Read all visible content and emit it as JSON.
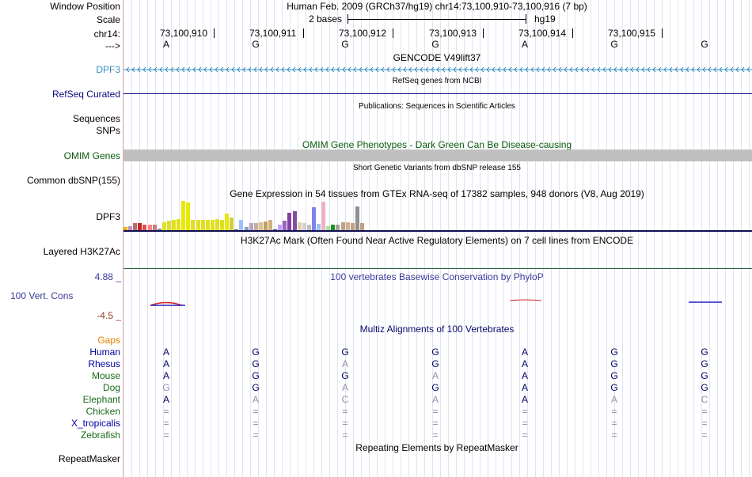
{
  "header": {
    "window_position_label": "Window Position",
    "scale_label": "Scale",
    "chrom_label": "chr14:",
    "strand_label": "--->",
    "assembly_text": "Human Feb. 2009 (GRCh37/hg19)   chr14:73,100,910-73,100,916 (7 bp)",
    "scale_text": "2 bases",
    "scale_db": "hg19",
    "positions": [
      "73,100,910",
      "73,100,911",
      "73,100,912",
      "73,100,913",
      "73,100,914",
      "73,100,915"
    ],
    "bases": [
      "A",
      "G",
      "G",
      "G",
      "A",
      "G",
      "G"
    ]
  },
  "tracks": {
    "gencode": {
      "title": "GENCODE V49lift37",
      "label": "DPF3",
      "color": "#3a8fc0"
    },
    "refseq": {
      "title": "RefSeq genes from NCBI",
      "label": "RefSeq Curated"
    },
    "publications": {
      "title": "Publications: Sequences in Scientific Articles",
      "label1": "Sequences",
      "label2": "SNPs"
    },
    "omim": {
      "title": "OMIM Gene Phenotypes - Dark Green Can Be Disease-causing",
      "label": "OMIM Genes"
    },
    "dbsnp": {
      "title": "Short Genetic Variants from dbSNP release 155",
      "label": "Common dbSNP(155)"
    },
    "gtex": {
      "title": "Gene Expression in 54 tissues from GTEx RNA-seq of 17382 samples, 948 donors (V8, Aug 2019)",
      "label": "DPF3",
      "bars": [
        0.12,
        0.16,
        0.26,
        0.26,
        0.22,
        0.2,
        0.2,
        0.08,
        0.3,
        0.34,
        0.36,
        0.4,
        1.0,
        0.94,
        0.38,
        0.36,
        0.38,
        0.38,
        0.38,
        0.4,
        0.36,
        0.58,
        0.44,
        0.06,
        0.36,
        0.14,
        0.26,
        0.26,
        0.3,
        0.32,
        0.38,
        0.06,
        0.2,
        0.34,
        0.6,
        0.66,
        0.3,
        0.26,
        0.2,
        0.8,
        0.24,
        0.98,
        0.16,
        0.2,
        0.22,
        0.28,
        0.28,
        0.26,
        0.82,
        0.26
      ],
      "colors": [
        "#f0b000",
        "#c090c0",
        "#b07070",
        "#d02020",
        "#e05050",
        "#ff8080",
        "#c08080",
        "#909090",
        "#e0e020",
        "#e0e020",
        "#e0e020",
        "#e0e020",
        "#e8e800",
        "#e8e800",
        "#e0e020",
        "#e0e020",
        "#e0e020",
        "#e0e020",
        "#e0e020",
        "#e0e020",
        "#e0e020",
        "#e8e800",
        "#d0d040",
        "#606060",
        "#a0c0ff",
        "#80a0c0",
        "#c0a0c0",
        "#c0b0a0",
        "#e0c090",
        "#c0a060",
        "#d0b080",
        "#404040",
        "#c0a0ff",
        "#a060c0",
        "#8040a0",
        "#8050a0",
        "#e0d0b0",
        "#d0d0d0",
        "#c0c0c0",
        "#8080f0",
        "#a0c0f0",
        "#f0b0c0",
        "#a0e0a0",
        "#209020",
        "#a0a0a0",
        "#c0a080",
        "#d0b090",
        "#c0a080",
        "#909090",
        "#c0a080"
      ]
    },
    "h3k27ac": {
      "title": "H3K27Ac Mark (Often Found Near Active Regulatory Elements) on 7 cell lines from ENCODE",
      "label": "Layered H3K27Ac"
    },
    "cons": {
      "title": "100 vertebrates Basewise Conservation by PhyloP",
      "label": "100 Vert. Cons",
      "max_label": "4.88 _",
      "min_label": "-4.5 _"
    },
    "multiz": {
      "title": "Multiz Alignments of 100 Vertebrates",
      "gaps_label": "Gaps",
      "species": [
        {
          "name": "Human",
          "bases": [
            "A",
            "G",
            "G",
            "G",
            "A",
            "G",
            "G"
          ],
          "color": "#0000a0"
        },
        {
          "name": "Rhesus",
          "bases": [
            "A",
            "G",
            "A",
            "G",
            "A",
            "G",
            "G"
          ],
          "color": "#0000a0"
        },
        {
          "name": "Mouse",
          "bases": [
            "A",
            "G",
            "G",
            "A",
            "A",
            "G",
            "G"
          ],
          "color": "#1a6a1a"
        },
        {
          "name": "Dog",
          "bases": [
            "G",
            "G",
            "A",
            "G",
            "A",
            "G",
            "G"
          ],
          "color": "#1a6a1a"
        },
        {
          "name": "Elephant",
          "bases": [
            "A",
            "A",
            "C",
            "A",
            "A",
            "A",
            "C"
          ],
          "color": "#1a6a1a"
        },
        {
          "name": "Chicken",
          "bases": [
            "=",
            "=",
            "=",
            "=",
            "=",
            "=",
            "="
          ],
          "color": "#1a6a1a"
        },
        {
          "name": "X_tropicalis",
          "bases": [
            "=",
            "=",
            "=",
            "=",
            "=",
            "=",
            "="
          ],
          "color": "#0000a0"
        },
        {
          "name": "Zebrafish",
          "bases": [
            "=",
            "=",
            "=",
            "=",
            "=",
            "=",
            "="
          ],
          "color": "#1a6a1a"
        }
      ]
    },
    "repeatmasker": {
      "title": "Repeating Elements by RepeatMasker",
      "label": "RepeatMasker"
    }
  }
}
